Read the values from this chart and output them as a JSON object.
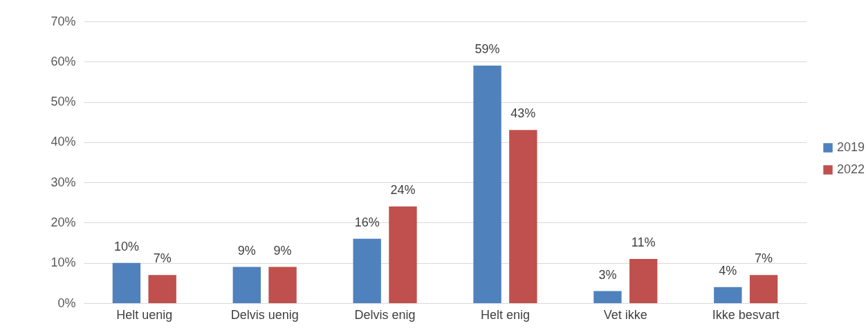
{
  "chart_data": {
    "type": "bar",
    "categories": [
      "Helt uenig",
      "Delvis uenig",
      "Delvis enig",
      "Helt enig",
      "Vet ikke",
      "Ikke besvart"
    ],
    "series": [
      {
        "name": "2019",
        "color": "#4f81bd",
        "values": [
          10,
          9,
          16,
          59,
          3,
          4
        ],
        "value_labels": [
          "10%",
          "9%",
          "16%",
          "59%",
          "3%",
          "4%"
        ]
      },
      {
        "name": "2022",
        "color": "#c0504d",
        "values": [
          7,
          9,
          24,
          43,
          11,
          7
        ],
        "value_labels": [
          "7%",
          "9%",
          "24%",
          "43%",
          "11%",
          "7%"
        ]
      }
    ],
    "ylim": [
      0,
      70
    ],
    "yticks": [
      {
        "value": 0,
        "label": "0%"
      },
      {
        "value": 10,
        "label": "10%"
      },
      {
        "value": 20,
        "label": "20%"
      },
      {
        "value": 30,
        "label": "30%"
      },
      {
        "value": 40,
        "label": "40%"
      },
      {
        "value": 50,
        "label": "50%"
      },
      {
        "value": 60,
        "label": "60%"
      },
      {
        "value": 70,
        "label": "70%"
      }
    ],
    "grid": "y",
    "legend": "right"
  }
}
